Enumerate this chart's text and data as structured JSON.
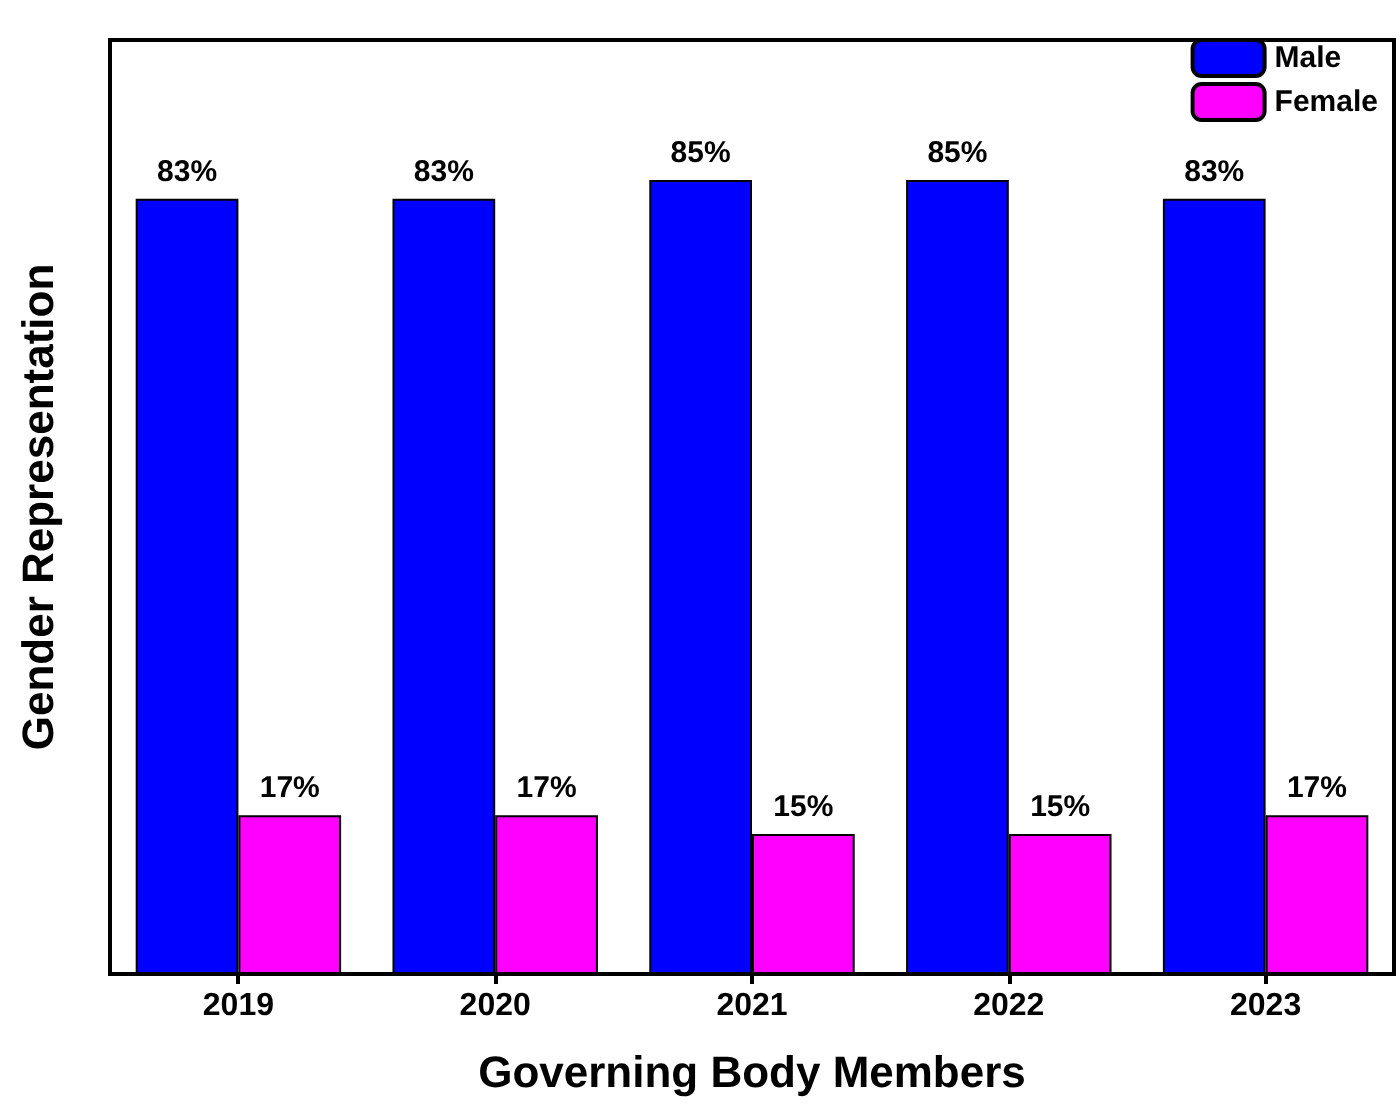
{
  "chart_data": {
    "type": "bar",
    "xlabel": "Governing Body Members",
    "ylabel": "Gender Representation",
    "categories": [
      "2019",
      "2020",
      "2021",
      "2022",
      "2023"
    ],
    "series": [
      {
        "name": "Male",
        "color": "#0000ff",
        "values": [
          83,
          83,
          85,
          85,
          83
        ],
        "value_labels": [
          "83%",
          "83%",
          "85%",
          "85%",
          "83%"
        ]
      },
      {
        "name": "Female",
        "color": "#ff00ff",
        "values": [
          17,
          17,
          15,
          15,
          17
        ],
        "value_labels": [
          "17%",
          "17%",
          "15%",
          "15%",
          "17%"
        ]
      }
    ],
    "ylim": [
      0,
      100
    ],
    "tick_labels": "x",
    "grid": false,
    "legend": "top right"
  }
}
